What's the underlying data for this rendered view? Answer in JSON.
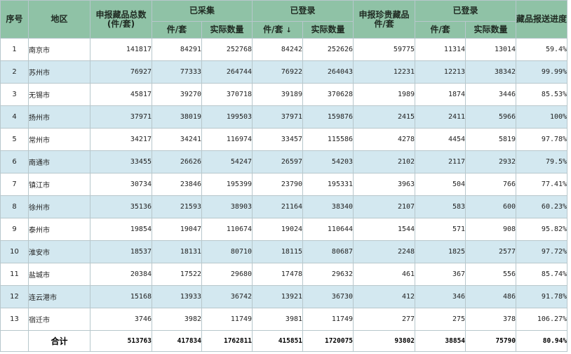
{
  "header": {
    "seq": "序号",
    "region": "地区",
    "declared_total": "申报藏品总数(件/套)",
    "collected": "已采集",
    "registered": "已登录",
    "declared_precious": "申报珍贵藏品件/套",
    "registered2": "已登录",
    "progress": "藏品报送进度",
    "sub_pieces": "件/套",
    "sub_actual": "实际数量",
    "sort_arrow": "↓"
  },
  "rows": [
    {
      "idx": "1",
      "region": "南京市",
      "declared": "141817",
      "col_pieces": "84291",
      "col_actual": "252768",
      "reg_pieces": "84242",
      "reg_actual": "252626",
      "precious": "59775",
      "reg2_pieces": "11314",
      "reg2_actual": "13014",
      "progress": "59.4%"
    },
    {
      "idx": "2",
      "region": "苏州市",
      "declared": "76927",
      "col_pieces": "77333",
      "col_actual": "264744",
      "reg_pieces": "76922",
      "reg_actual": "264043",
      "precious": "12231",
      "reg2_pieces": "12213",
      "reg2_actual": "38342",
      "progress": "99.99%"
    },
    {
      "idx": "3",
      "region": "无锡市",
      "declared": "45817",
      "col_pieces": "39270",
      "col_actual": "370718",
      "reg_pieces": "39189",
      "reg_actual": "370628",
      "precious": "1989",
      "reg2_pieces": "1874",
      "reg2_actual": "3446",
      "progress": "85.53%"
    },
    {
      "idx": "4",
      "region": "扬州市",
      "declared": "37971",
      "col_pieces": "38019",
      "col_actual": "199503",
      "reg_pieces": "37971",
      "reg_actual": "159876",
      "precious": "2415",
      "reg2_pieces": "2411",
      "reg2_actual": "5966",
      "progress": "100%"
    },
    {
      "idx": "5",
      "region": "常州市",
      "declared": "34217",
      "col_pieces": "34241",
      "col_actual": "116974",
      "reg_pieces": "33457",
      "reg_actual": "115586",
      "precious": "4278",
      "reg2_pieces": "4454",
      "reg2_actual": "5819",
      "progress": "97.78%"
    },
    {
      "idx": "6",
      "region": "南通市",
      "declared": "33455",
      "col_pieces": "26626",
      "col_actual": "54247",
      "reg_pieces": "26597",
      "reg_actual": "54203",
      "precious": "2102",
      "reg2_pieces": "2117",
      "reg2_actual": "2932",
      "progress": "79.5%"
    },
    {
      "idx": "7",
      "region": "镇江市",
      "declared": "30734",
      "col_pieces": "23846",
      "col_actual": "195399",
      "reg_pieces": "23790",
      "reg_actual": "195331",
      "precious": "3963",
      "reg2_pieces": "504",
      "reg2_actual": "766",
      "progress": "77.41%"
    },
    {
      "idx": "8",
      "region": "徐州市",
      "declared": "35136",
      "col_pieces": "21593",
      "col_actual": "38903",
      "reg_pieces": "21164",
      "reg_actual": "38340",
      "precious": "2107",
      "reg2_pieces": "583",
      "reg2_actual": "600",
      "progress": "60.23%"
    },
    {
      "idx": "9",
      "region": "泰州市",
      "declared": "19854",
      "col_pieces": "19047",
      "col_actual": "110674",
      "reg_pieces": "19024",
      "reg_actual": "110644",
      "precious": "1544",
      "reg2_pieces": "571",
      "reg2_actual": "908",
      "progress": "95.82%"
    },
    {
      "idx": "10",
      "region": "淮安市",
      "declared": "18537",
      "col_pieces": "18131",
      "col_actual": "80710",
      "reg_pieces": "18115",
      "reg_actual": "80687",
      "precious": "2248",
      "reg2_pieces": "1825",
      "reg2_actual": "2577",
      "progress": "97.72%"
    },
    {
      "idx": "11",
      "region": "盐城市",
      "declared": "20384",
      "col_pieces": "17522",
      "col_actual": "29680",
      "reg_pieces": "17478",
      "reg_actual": "29632",
      "precious": "461",
      "reg2_pieces": "367",
      "reg2_actual": "556",
      "progress": "85.74%"
    },
    {
      "idx": "12",
      "region": "连云港市",
      "declared": "15168",
      "col_pieces": "13933",
      "col_actual": "36742",
      "reg_pieces": "13921",
      "reg_actual": "36730",
      "precious": "412",
      "reg2_pieces": "346",
      "reg2_actual": "486",
      "progress": "91.78%"
    },
    {
      "idx": "13",
      "region": "宿迁市",
      "declared": "3746",
      "col_pieces": "3982",
      "col_actual": "11749",
      "reg_pieces": "3981",
      "reg_actual": "11749",
      "precious": "277",
      "reg2_pieces": "275",
      "reg2_actual": "378",
      "progress": "106.27%"
    }
  ],
  "total": {
    "label": "合计",
    "declared": "513763",
    "col_pieces": "417834",
    "col_actual": "1762811",
    "reg_pieces": "415851",
    "reg_actual": "1720075",
    "precious": "93802",
    "reg2_pieces": "38854",
    "reg2_actual": "75790",
    "progress": "80.94%"
  },
  "colors": {
    "header_bg": "#8fc2a6",
    "row_alt_bg": "#d3e8f0",
    "border": "#b7c7cc"
  }
}
